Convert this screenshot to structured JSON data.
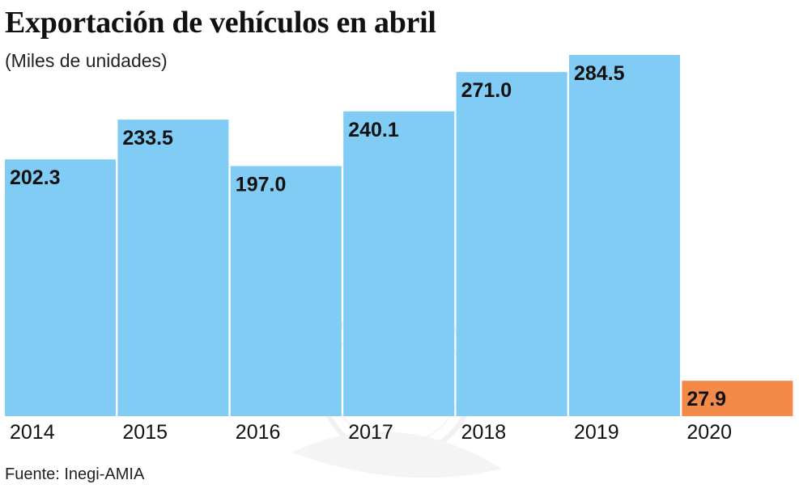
{
  "chart_data": {
    "type": "bar",
    "title": "Exportación de vehículos en abril",
    "subtitle": "(Miles de unidades)",
    "categories": [
      "2014",
      "2015",
      "2016",
      "2017",
      "2018",
      "2019",
      "2020"
    ],
    "values": [
      202.3,
      233.5,
      197.0,
      240.1,
      271.0,
      284.5,
      27.9
    ],
    "value_labels": [
      "202.3",
      "233.5",
      "197.0",
      "240.1",
      "271.0",
      "284.5",
      "27.9"
    ],
    "highlight_category": "2020",
    "xlabel": "",
    "ylabel": "",
    "ylim": [
      0,
      284.5
    ],
    "grid": false,
    "source": "Fuente: Inegi-AMIA"
  },
  "colors": {
    "bar": "#80ccf4",
    "highlight": "#f48a4a",
    "watermark": "#e6e6e6"
  }
}
